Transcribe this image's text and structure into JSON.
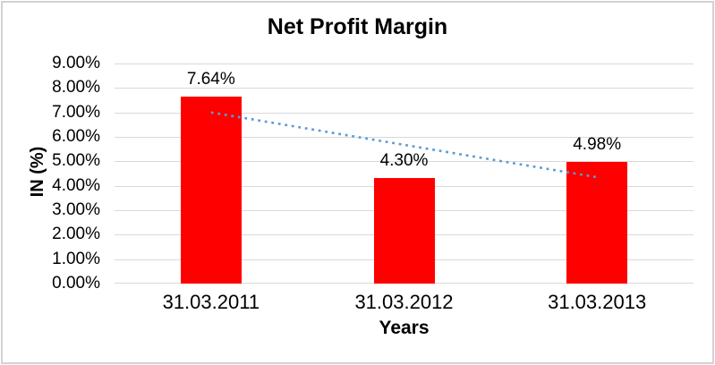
{
  "chart_data": {
    "type": "bar",
    "title": "Net Profit Margin",
    "xlabel": "Years",
    "ylabel": "IN (%)",
    "categories": [
      "31.03.2011",
      "31.03.2012",
      "31.03.2013"
    ],
    "values": [
      7.64,
      4.3,
      4.98
    ],
    "data_labels": [
      "7.64%",
      "4.30%",
      "4.98%"
    ],
    "ylim": [
      0,
      9
    ],
    "y_tick_step": 1,
    "y_tick_labels_top_to_bottom": [
      "9.00%",
      "8.00%",
      "7.00%",
      "6.00%",
      "5.00%",
      "4.00%",
      "3.00%",
      "2.00%",
      "1.00%",
      "0.00%"
    ],
    "grid": true,
    "legend": false,
    "trendline": {
      "type": "linear",
      "style": "dotted",
      "start_value": 7.0,
      "end_value": 4.35
    },
    "colors": {
      "bar": "#FF0000",
      "trendline": "#5B9BD5",
      "gridline": "#D9D9D9",
      "text": "#000000",
      "frame_border": "#D2D2D2",
      "background": "#FFFFFF"
    }
  }
}
